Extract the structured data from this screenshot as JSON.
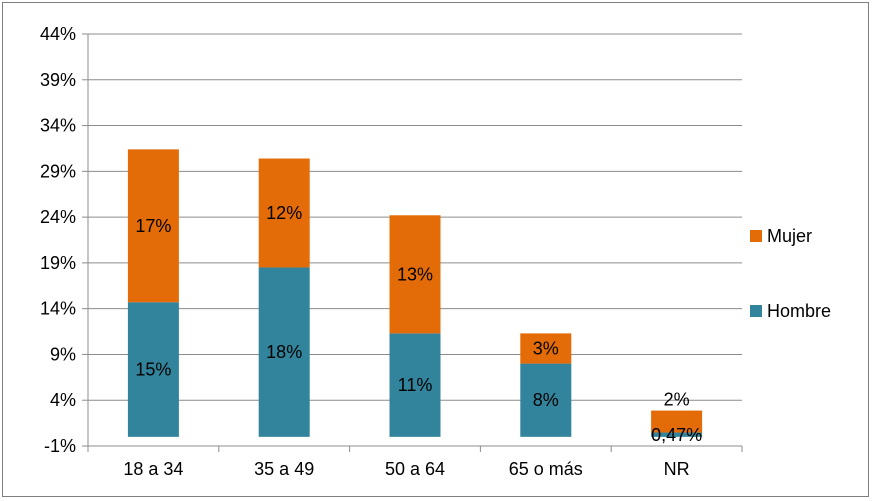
{
  "chart_data": {
    "type": "bar",
    "stacked": true,
    "categories": [
      "18 a 34",
      "35 a 49",
      "50 a 64",
      "65 o más",
      "NR"
    ],
    "series": [
      {
        "name": "Hombre",
        "color": "#31849b",
        "values": [
          14.7,
          18.5,
          11.3,
          8.0,
          0.47
        ],
        "labels": [
          "15%",
          "18%",
          "11%",
          "8%",
          "0,47%"
        ]
      },
      {
        "name": "Mujer",
        "color": "#e36c09",
        "values": [
          16.7,
          11.9,
          12.9,
          3.3,
          2.4
        ],
        "labels": [
          "17%",
          "12%",
          "13%",
          "3%",
          "2%"
        ]
      }
    ],
    "ylim": [
      -1,
      44
    ],
    "yticks": [
      -1,
      4,
      9,
      14,
      19,
      24,
      29,
      34,
      39,
      44
    ],
    "ytick_labels": [
      "-1%",
      "4%",
      "9%",
      "14%",
      "19%",
      "24%",
      "29%",
      "34%",
      "39%",
      "44%"
    ],
    "grid": true,
    "legend": "right",
    "title": "",
    "xlabel": "",
    "ylabel": ""
  }
}
